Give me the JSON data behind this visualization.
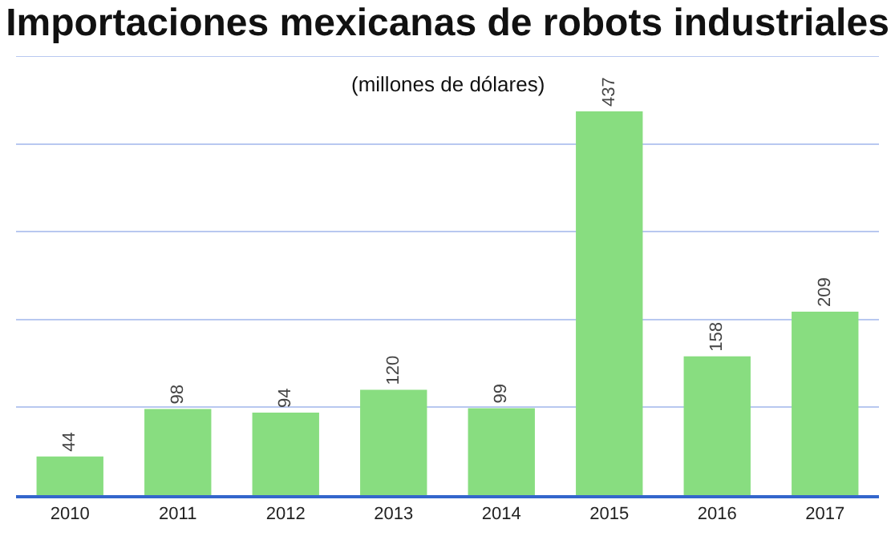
{
  "chart_data": {
    "type": "bar",
    "title": "Importaciones mexicanas de robots industriales",
    "subtitle": "(millones de dólares)",
    "categories": [
      "2010",
      "2011",
      "2012",
      "2013",
      "2014",
      "2015",
      "2016",
      "2017"
    ],
    "values": [
      44,
      98,
      94,
      120,
      99,
      437,
      158,
      209
    ],
    "color": "#88dd80",
    "ylim": [
      0,
      500
    ],
    "yticks": [
      {
        "value": 0,
        "label": null
      },
      {
        "value": 100,
        "label": null
      },
      {
        "value": 200,
        "label": null
      },
      {
        "value": 300,
        "label": null
      },
      {
        "value": 400,
        "label": null
      },
      {
        "value": 500,
        "label": null
      }
    ],
    "grid": "y",
    "data_labels": true,
    "tick_labels": "x"
  }
}
